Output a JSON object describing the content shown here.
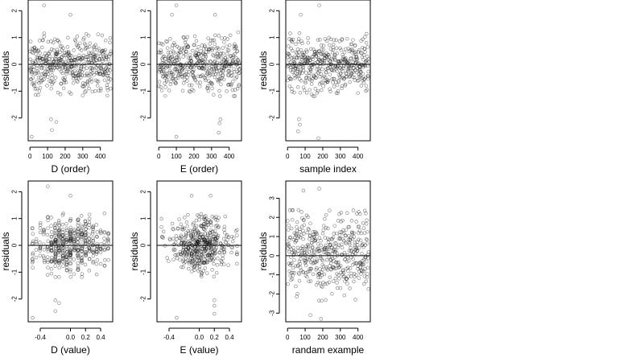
{
  "chart_data": [
    {
      "type": "scatter",
      "xlabel": "D (order)",
      "ylabel": "residuals",
      "xlim": [
        -10,
        470
      ],
      "ylim": [
        -2.85,
        2.4
      ],
      "xticks": [
        0,
        100,
        200,
        300,
        400
      ],
      "xtick_labels": [
        "0",
        "100",
        "200",
        "300",
        "400"
      ],
      "yticks": [
        -2,
        -1,
        0,
        1,
        2
      ],
      "ytick_labels": [
        "-2",
        "-1",
        "0",
        "1",
        "2"
      ],
      "hline": 0,
      "n_points": 460,
      "x_range": [
        0,
        460
      ],
      "y_mean": 0,
      "y_sd": 0.5,
      "outliers": [
        {
          "x": 10,
          "y": -2.7
        },
        {
          "x": 80,
          "y": 2.2
        },
        {
          "x": 120,
          "y": -2.05
        },
        {
          "x": 125,
          "y": -2.45
        },
        {
          "x": 150,
          "y": -2.15
        },
        {
          "x": 230,
          "y": 1.85
        }
      ]
    },
    {
      "type": "scatter",
      "xlabel": "E (order)",
      "ylabel": "residuals",
      "xlim": [
        -10,
        470
      ],
      "ylim": [
        -2.85,
        2.4
      ],
      "xticks": [
        0,
        100,
        200,
        300,
        400
      ],
      "xtick_labels": [
        "0",
        "100",
        "200",
        "300",
        "400"
      ],
      "yticks": [
        -2,
        -1,
        0,
        1,
        2
      ],
      "ytick_labels": [
        "-2",
        "-1",
        "0",
        "1",
        "2"
      ],
      "hline": 0,
      "n_points": 460,
      "x_range": [
        0,
        460
      ],
      "y_mean": 0,
      "y_sd": 0.5,
      "outliers": [
        {
          "x": 100,
          "y": 2.2
        },
        {
          "x": 75,
          "y": 1.85
        },
        {
          "x": 100,
          "y": -2.7
        },
        {
          "x": 320,
          "y": 1.85
        },
        {
          "x": 350,
          "y": -2.05
        },
        {
          "x": 345,
          "y": -2.2
        },
        {
          "x": 340,
          "y": -2.55
        }
      ]
    },
    {
      "type": "scatter",
      "xlabel": "sample index",
      "ylabel": "residuals",
      "xlim": [
        -10,
        470
      ],
      "ylim": [
        -2.85,
        2.4
      ],
      "xticks": [
        0,
        100,
        200,
        300,
        400
      ],
      "xtick_labels": [
        "0",
        "100",
        "200",
        "300",
        "400"
      ],
      "yticks": [
        -2,
        -1,
        0,
        1,
        2
      ],
      "ytick_labels": [
        "-2",
        "-1",
        "0",
        "1",
        "2"
      ],
      "hline": 0,
      "n_points": 460,
      "x_range": [
        0,
        460
      ],
      "y_mean": 0,
      "y_sd": 0.5,
      "outliers": [
        {
          "x": 180,
          "y": 2.2
        },
        {
          "x": 75,
          "y": 1.85
        },
        {
          "x": 65,
          "y": -2.05
        },
        {
          "x": 70,
          "y": -2.25
        },
        {
          "x": 60,
          "y": -2.5
        },
        {
          "x": 175,
          "y": -2.75
        }
      ]
    },
    {
      "type": "scatter",
      "xlabel": "D (value)",
      "ylabel": "residuals",
      "xlim": [
        -0.56,
        0.56
      ],
      "ylim": [
        -2.85,
        2.4
      ],
      "xticks": [
        -0.4,
        0.0,
        0.2,
        0.4
      ],
      "xtick_labels": [
        "-0.4",
        "0.0",
        "0.2",
        "0.4"
      ],
      "yticks": [
        -2,
        -1,
        0,
        1,
        2
      ],
      "ytick_labels": [
        "-2",
        "-1",
        "0",
        "1",
        "2"
      ],
      "hline": 0,
      "n_points": 460,
      "x_range": [
        -0.5,
        0.5
      ],
      "x_discrete_step": 0.05,
      "y_mean": 0,
      "y_sd": 0.5,
      "outliers": [
        {
          "x": -0.5,
          "y": -2.7
        },
        {
          "x": -0.3,
          "y": 2.2
        },
        {
          "x": -0.2,
          "y": -2.05
        },
        {
          "x": -0.2,
          "y": -2.45
        },
        {
          "x": -0.15,
          "y": -2.15
        },
        {
          "x": 0.0,
          "y": 1.85
        }
      ]
    },
    {
      "type": "scatter",
      "xlabel": "E (value)",
      "ylabel": "residuals",
      "xlim": [
        -0.56,
        0.56
      ],
      "ylim": [
        -2.85,
        2.4
      ],
      "xticks": [
        -0.4,
        0.0,
        0.2,
        0.4
      ],
      "xtick_labels": [
        "-0.4",
        "0.0",
        "0.2",
        "0.4"
      ],
      "yticks": [
        -2,
        -1,
        0,
        1,
        2
      ],
      "ytick_labels": [
        "-2",
        "-1",
        "0",
        "1",
        "2"
      ],
      "hline": 0,
      "n_points": 460,
      "x_range": [
        -0.5,
        0.5
      ],
      "y_mean": 0,
      "y_sd": 0.5,
      "outliers": [
        {
          "x": 0.15,
          "y": 1.85
        },
        {
          "x": -0.1,
          "y": 1.85
        },
        {
          "x": -0.3,
          "y": -2.7
        },
        {
          "x": 0.2,
          "y": -2.05
        },
        {
          "x": 0.2,
          "y": -2.25
        },
        {
          "x": 0.2,
          "y": -2.55
        }
      ]
    },
    {
      "type": "scatter",
      "xlabel": "randam example",
      "ylabel": "residuals",
      "xlim": [
        -10,
        470
      ],
      "ylim": [
        -3.45,
        3.9
      ],
      "xticks": [
        0,
        100,
        200,
        300,
        400
      ],
      "xtick_labels": [
        "0",
        "100",
        "200",
        "300",
        "400"
      ],
      "yticks": [
        -3,
        -2,
        -1,
        0,
        1,
        2,
        3
      ],
      "ytick_labels": [
        "-3",
        "-2",
        "-1",
        "0",
        "1",
        "2",
        "3"
      ],
      "hline": 0,
      "n_points": 460,
      "x_range": [
        0,
        460
      ],
      "y_mean": 0,
      "y_sd": 1.0,
      "outliers": [
        {
          "x": 180,
          "y": 3.5
        },
        {
          "x": 90,
          "y": 3.4
        },
        {
          "x": 190,
          "y": -3.3
        },
        {
          "x": 130,
          "y": -3.1
        }
      ]
    }
  ]
}
